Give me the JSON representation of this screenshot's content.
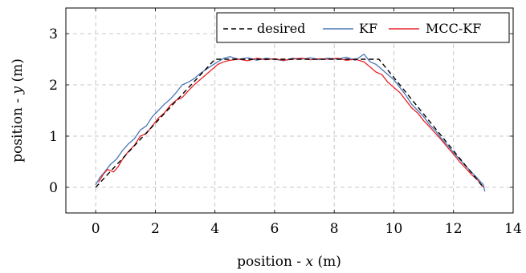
{
  "chart_data": {
    "type": "line",
    "title": "",
    "xlabel_prefix": "position - ",
    "xlabel_var": "x",
    "xlabel_suffix": " (m)",
    "ylabel_prefix": "position - ",
    "ylabel_var": "y",
    "ylabel_suffix": " (m)",
    "xlim": [
      -1,
      14
    ],
    "ylim": [
      -0.5,
      3.5
    ],
    "xticks": [
      0,
      2,
      4,
      6,
      8,
      10,
      12,
      14
    ],
    "yticks": [
      0,
      1,
      2,
      3
    ],
    "grid": true,
    "legend_position": "top-right",
    "series": [
      {
        "name": "desired",
        "color": "#000000",
        "style": "dashed",
        "x": [
          0.0,
          4.0,
          9.5,
          13.0
        ],
        "y": [
          0.0,
          2.5,
          2.5,
          0.0
        ]
      },
      {
        "name": "KF",
        "color": "#4a78b6",
        "style": "solid",
        "x": [
          0.0,
          0.15,
          0.3,
          0.5,
          0.7,
          0.9,
          1.1,
          1.3,
          1.5,
          1.7,
          1.9,
          2.1,
          2.3,
          2.5,
          2.7,
          2.9,
          3.1,
          3.3,
          3.5,
          3.7,
          3.9,
          4.1,
          4.3,
          4.5,
          4.8,
          5.1,
          5.4,
          5.7,
          6.0,
          6.3,
          6.6,
          6.9,
          7.2,
          7.5,
          7.8,
          8.1,
          8.4,
          8.7,
          9.0,
          9.2,
          9.4,
          9.6,
          9.8,
          10.0,
          10.2,
          10.4,
          10.6,
          10.8,
          11.0,
          11.2,
          11.4,
          11.6,
          11.8,
          12.0,
          12.2,
          12.4,
          12.6,
          12.8,
          13.0,
          13.05
        ],
        "y": [
          0.05,
          0.2,
          0.3,
          0.45,
          0.55,
          0.72,
          0.85,
          0.95,
          1.12,
          1.2,
          1.38,
          1.5,
          1.62,
          1.72,
          1.85,
          2.0,
          2.05,
          2.12,
          2.22,
          2.3,
          2.38,
          2.45,
          2.52,
          2.55,
          2.5,
          2.53,
          2.48,
          2.52,
          2.5,
          2.47,
          2.52,
          2.5,
          2.53,
          2.49,
          2.52,
          2.5,
          2.54,
          2.48,
          2.6,
          2.45,
          2.4,
          2.3,
          2.2,
          2.1,
          1.95,
          1.8,
          1.62,
          1.5,
          1.38,
          1.22,
          1.1,
          0.95,
          0.82,
          0.68,
          0.55,
          0.42,
          0.3,
          0.18,
          0.05,
          -0.08
        ]
      },
      {
        "name": "MCC-KF",
        "color": "#e8232a",
        "style": "solid",
        "x": [
          0.1,
          0.25,
          0.4,
          0.6,
          0.75,
          0.9,
          1.1,
          1.3,
          1.5,
          1.7,
          1.9,
          2.1,
          2.3,
          2.5,
          2.7,
          2.9,
          3.1,
          3.3,
          3.5,
          3.7,
          3.9,
          4.1,
          4.3,
          4.5,
          4.8,
          5.1,
          5.4,
          5.7,
          6.0,
          6.3,
          6.6,
          6.9,
          7.2,
          7.5,
          7.8,
          8.1,
          8.4,
          8.7,
          9.0,
          9.2,
          9.4,
          9.6,
          9.8,
          10.0,
          10.2,
          10.4,
          10.6,
          10.8,
          11.0,
          11.2,
          11.4,
          11.6,
          11.8,
          12.0,
          12.2,
          12.4,
          12.6,
          12.8,
          13.0
        ],
        "y": [
          0.1,
          0.25,
          0.35,
          0.3,
          0.4,
          0.55,
          0.7,
          0.82,
          1.0,
          1.05,
          1.2,
          1.35,
          1.45,
          1.6,
          1.7,
          1.75,
          1.88,
          2.0,
          2.1,
          2.2,
          2.3,
          2.4,
          2.45,
          2.48,
          2.5,
          2.47,
          2.52,
          2.49,
          2.51,
          2.48,
          2.5,
          2.52,
          2.49,
          2.51,
          2.5,
          2.52,
          2.48,
          2.5,
          2.45,
          2.35,
          2.25,
          2.2,
          2.05,
          1.95,
          1.85,
          1.7,
          1.55,
          1.45,
          1.3,
          1.18,
          1.05,
          0.92,
          0.78,
          0.65,
          0.5,
          0.38,
          0.25,
          0.15,
          0.0
        ]
      }
    ]
  }
}
